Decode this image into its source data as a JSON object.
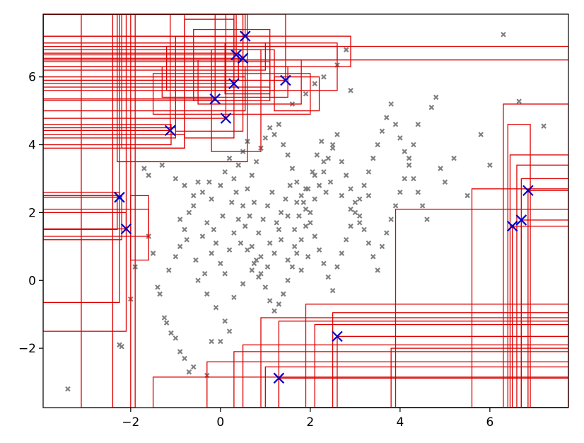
{
  "chart_data": {
    "type": "scatter",
    "title": "",
    "xlabel": "",
    "ylabel": "",
    "xlim": [
      -3.95,
      7.75
    ],
    "ylim": [
      -3.75,
      7.85
    ],
    "grid": false,
    "legend": "none",
    "x_ticks": [
      {
        "value": -2,
        "label": "−2"
      },
      {
        "value": 0,
        "label": "0"
      },
      {
        "value": 2,
        "label": "2"
      },
      {
        "value": 4,
        "label": "4"
      },
      {
        "value": 6,
        "label": "6"
      }
    ],
    "y_ticks": [
      {
        "value": -2,
        "label": "−2"
      },
      {
        "value": 0,
        "label": "0"
      },
      {
        "value": 2,
        "label": "2"
      },
      {
        "value": 4,
        "label": "4"
      },
      {
        "value": 6,
        "label": "6"
      }
    ],
    "colors": {
      "background_points": "#808080",
      "highlighted_points": "#0000cc",
      "boxes": "#dd0000",
      "axes": "#000000"
    },
    "highlighted_points": [
      {
        "x": -2.25,
        "y": 2.45
      },
      {
        "x": -2.1,
        "y": 1.52
      },
      {
        "x": -1.12,
        "y": 4.42
      },
      {
        "x": -0.12,
        "y": 5.35
      },
      {
        "x": 0.12,
        "y": 4.78
      },
      {
        "x": 0.3,
        "y": 5.8
      },
      {
        "x": 0.35,
        "y": 6.65
      },
      {
        "x": 0.5,
        "y": 6.55
      },
      {
        "x": 0.55,
        "y": 7.2
      },
      {
        "x": 1.45,
        "y": 5.9
      },
      {
        "x": 1.3,
        "y": -2.88
      },
      {
        "x": 2.6,
        "y": -1.65
      },
      {
        "x": 6.5,
        "y": 1.6
      },
      {
        "x": 6.7,
        "y": 1.78
      },
      {
        "x": 6.85,
        "y": 2.65
      }
    ],
    "boxes": [
      [
        -2.25,
        -3.95,
        2.45,
        7.85
      ],
      [
        -2.1,
        -3.95,
        1.52,
        7.85
      ],
      [
        -1.12,
        -3.95,
        4.42,
        7.85
      ],
      [
        -0.12,
        -3.95,
        5.35,
        7.85
      ],
      [
        0.12,
        -3.95,
        4.78,
        7.85
      ],
      [
        0.3,
        -3.95,
        5.8,
        7.85
      ],
      [
        0.35,
        -3.95,
        6.65,
        7.85
      ],
      [
        0.5,
        -3.95,
        6.55,
        7.85
      ],
      [
        0.55,
        -3.95,
        7.2,
        7.85
      ],
      [
        1.45,
        -3.95,
        5.9,
        7.85
      ],
      [
        1.3,
        7.75,
        -3.75,
        -2.88
      ],
      [
        2.6,
        7.75,
        -3.75,
        -1.65
      ],
      [
        6.5,
        7.75,
        -3.75,
        1.6
      ],
      [
        6.7,
        7.75,
        -3.75,
        1.78
      ],
      [
        6.85,
        7.75,
        -3.75,
        2.65
      ],
      [
        -3.1,
        -2.0,
        -3.75,
        7.85
      ],
      [
        -2.4,
        -1.9,
        -3.75,
        7.85
      ],
      [
        -2.2,
        -0.8,
        3.9,
        7.85
      ],
      [
        -2.0,
        -1.6,
        0.6,
        2.5
      ],
      [
        -2.3,
        0.6,
        3.5,
        7.85
      ],
      [
        -1.0,
        0.5,
        4.4,
        7.2
      ],
      [
        -1.5,
        2.0,
        4.9,
        6.1
      ],
      [
        -0.8,
        0.3,
        4.2,
        7.7
      ],
      [
        -0.2,
        0.9,
        3.8,
        6.8
      ],
      [
        0.1,
        1.1,
        5.5,
        7.0
      ],
      [
        -0.5,
        1.8,
        5.2,
        6.5
      ],
      [
        1.2,
        2.2,
        5.0,
        6.0
      ],
      [
        -1.2,
        2.6,
        5.6,
        6.9
      ],
      [
        -1.3,
        1.5,
        5.4,
        6.3
      ],
      [
        -0.6,
        1.1,
        5.3,
        7.4
      ],
      [
        -3.95,
        -0.8,
        3.9,
        4.3
      ],
      [
        -3.95,
        -1.0,
        4.2,
        4.5
      ],
      [
        -3.95,
        -1.1,
        4.0,
        4.6
      ],
      [
        -3.95,
        -2.2,
        1.2,
        2.5
      ],
      [
        -3.95,
        -1.6,
        1.3,
        2.1
      ],
      [
        -3.95,
        -2.3,
        1.5,
        2.5
      ],
      [
        -3.95,
        -2.25,
        -0.65,
        2.6
      ],
      [
        -3.95,
        -2.1,
        -1.5,
        2.0
      ],
      [
        -3.95,
        0.55,
        5.3,
        6.0
      ],
      [
        -3.95,
        0.55,
        5.0,
        6.3
      ],
      [
        -3.95,
        1.2,
        5.6,
        6.8
      ],
      [
        -3.95,
        1.0,
        6.2,
        7.0
      ],
      [
        -3.95,
        0.4,
        5.9,
        6.7
      ],
      [
        -3.95,
        2.6,
        6.5,
        7.0
      ],
      [
        -3.95,
        2.9,
        6.3,
        7.2
      ],
      [
        -3.95,
        7.75,
        6.5,
        6.9
      ],
      [
        -3.95,
        1.1,
        5.7,
        6.45
      ],
      [
        5.6,
        7.75,
        -3.75,
        2.7
      ],
      [
        3.9,
        7.75,
        -3.75,
        2.1
      ],
      [
        6.3,
        7.75,
        -3.75,
        5.2
      ],
      [
        6.4,
        6.9,
        -3.75,
        4.6
      ],
      [
        6.45,
        7.75,
        -3.75,
        3.7
      ],
      [
        6.6,
        7.75,
        -3.75,
        3.4
      ],
      [
        6.7,
        7.75,
        -3.75,
        3.0
      ],
      [
        -1.5,
        7.75,
        -3.75,
        -2.85
      ],
      [
        -0.3,
        7.75,
        -3.75,
        -2.4
      ],
      [
        1.3,
        7.75,
        -3.75,
        -1.2
      ],
      [
        0.9,
        7.75,
        -3.75,
        -1.1
      ],
      [
        0.5,
        7.75,
        -3.75,
        -1.9
      ],
      [
        0.3,
        7.75,
        -3.75,
        -2.1
      ],
      [
        3.8,
        7.75,
        -3.75,
        -2.0
      ],
      [
        1.9,
        7.75,
        -3.75,
        -0.7
      ],
      [
        2.5,
        7.75,
        -3.75,
        -0.95
      ],
      [
        2.1,
        7.75,
        -3.75,
        -1.3
      ],
      [
        1.0,
        7.75,
        -3.75,
        -2.55
      ]
    ],
    "background_points": [
      [
        -3.4,
        -3.2
      ],
      [
        -2.2,
        -1.95
      ],
      [
        -2.25,
        -1.9
      ],
      [
        -2.0,
        -0.55
      ],
      [
        -1.9,
        0.4
      ],
      [
        -1.6,
        1.3
      ],
      [
        -1.5,
        0.8
      ],
      [
        -1.4,
        -0.2
      ],
      [
        -1.35,
        -0.4
      ],
      [
        -1.25,
        -1.1
      ],
      [
        -1.2,
        -1.25
      ],
      [
        -1.1,
        -1.55
      ],
      [
        -1.0,
        -1.7
      ],
      [
        -0.9,
        -2.1
      ],
      [
        -0.8,
        -2.3
      ],
      [
        -0.7,
        -2.7
      ],
      [
        -0.6,
        -2.55
      ],
      [
        -0.3,
        -2.8
      ],
      [
        -0.2,
        -1.8
      ],
      [
        0.0,
        -1.8
      ],
      [
        0.2,
        -1.5
      ],
      [
        -1.15,
        0.3
      ],
      [
        -1.0,
        0.7
      ],
      [
        -0.9,
        1.0
      ],
      [
        -0.8,
        1.5
      ],
      [
        -0.7,
        2.0
      ],
      [
        -0.6,
        2.5
      ],
      [
        -0.5,
        2.9
      ],
      [
        -0.4,
        1.3
      ],
      [
        -0.3,
        1.7
      ],
      [
        -0.2,
        0.8
      ],
      [
        -0.1,
        1.1
      ],
      [
        0.0,
        0.5
      ],
      [
        0.1,
        0.2
      ],
      [
        0.2,
        0.9
      ],
      [
        0.3,
        1.4
      ],
      [
        0.4,
        1.8
      ],
      [
        0.5,
        2.2
      ],
      [
        0.6,
        2.7
      ],
      [
        0.7,
        3.1
      ],
      [
        0.8,
        3.5
      ],
      [
        0.9,
        3.9
      ],
      [
        1.0,
        4.2
      ],
      [
        1.1,
        4.5
      ],
      [
        1.2,
        4.3
      ],
      [
        1.3,
        4.6
      ],
      [
        1.4,
        4.0
      ],
      [
        1.5,
        3.7
      ],
      [
        1.6,
        3.3
      ],
      [
        1.7,
        2.9
      ],
      [
        1.8,
        2.5
      ],
      [
        1.9,
        2.1
      ],
      [
        2.0,
        1.7
      ],
      [
        2.1,
        1.3
      ],
      [
        2.2,
        0.9
      ],
      [
        2.3,
        0.5
      ],
      [
        2.4,
        0.1
      ],
      [
        2.5,
        -0.3
      ],
      [
        2.6,
        0.4
      ],
      [
        2.7,
        0.8
      ],
      [
        2.8,
        1.2
      ],
      [
        2.9,
        1.6
      ],
      [
        3.0,
        2.0
      ],
      [
        3.1,
        2.4
      ],
      [
        3.2,
        2.8
      ],
      [
        3.3,
        3.2
      ],
      [
        3.4,
        3.6
      ],
      [
        3.5,
        4.0
      ],
      [
        3.6,
        4.4
      ],
      [
        3.7,
        4.8
      ],
      [
        3.8,
        5.2
      ],
      [
        3.9,
        4.6
      ],
      [
        4.0,
        4.2
      ],
      [
        4.1,
        3.8
      ],
      [
        4.2,
        3.4
      ],
      [
        4.3,
        3.0
      ],
      [
        4.4,
        2.6
      ],
      [
        4.5,
        2.2
      ],
      [
        4.6,
        1.8
      ],
      [
        4.7,
        5.1
      ],
      [
        4.8,
        5.4
      ],
      [
        4.9,
        3.3
      ],
      [
        5.0,
        2.9
      ],
      [
        5.2,
        3.6
      ],
      [
        5.5,
        2.5
      ],
      [
        5.8,
        4.3
      ],
      [
        6.0,
        3.4
      ],
      [
        6.3,
        7.25
      ],
      [
        6.65,
        5.28
      ],
      [
        7.2,
        4.55
      ],
      [
        2.8,
        6.8
      ],
      [
        2.6,
        6.35
      ],
      [
        2.3,
        6.0
      ],
      [
        2.1,
        5.8
      ],
      [
        2.9,
        5.6
      ],
      [
        1.9,
        5.5
      ],
      [
        1.6,
        5.2
      ],
      [
        -1.7,
        3.3
      ],
      [
        -1.6,
        3.1
      ],
      [
        -1.3,
        3.4
      ],
      [
        -1.0,
        3.0
      ],
      [
        -0.8,
        2.8
      ],
      [
        -0.6,
        2.2
      ],
      [
        -0.4,
        2.6
      ],
      [
        -0.2,
        2.4
      ],
      [
        0.0,
        2.8
      ],
      [
        0.1,
        3.2
      ],
      [
        0.2,
        3.6
      ],
      [
        0.3,
        3.0
      ],
      [
        0.4,
        3.4
      ],
      [
        0.5,
        3.8
      ],
      [
        0.6,
        4.1
      ],
      [
        0.7,
        1.0
      ],
      [
        0.8,
        0.6
      ],
      [
        0.9,
        0.2
      ],
      [
        1.0,
        -0.2
      ],
      [
        1.1,
        -0.6
      ],
      [
        1.2,
        -0.9
      ],
      [
        1.3,
        -0.7
      ],
      [
        1.4,
        -0.4
      ],
      [
        1.5,
        0.0
      ],
      [
        1.6,
        0.4
      ],
      [
        1.7,
        0.8
      ],
      [
        1.8,
        1.2
      ],
      [
        1.9,
        1.6
      ],
      [
        2.0,
        2.0
      ],
      [
        2.1,
        2.4
      ],
      [
        2.2,
        2.8
      ],
      [
        2.3,
        3.2
      ],
      [
        2.4,
        3.6
      ],
      [
        2.5,
        4.0
      ],
      [
        2.6,
        4.3
      ],
      [
        2.7,
        3.5
      ],
      [
        2.8,
        3.1
      ],
      [
        2.9,
        2.7
      ],
      [
        3.0,
        2.3
      ],
      [
        3.1,
        1.9
      ],
      [
        3.2,
        1.5
      ],
      [
        3.3,
        1.1
      ],
      [
        3.4,
        0.7
      ],
      [
        3.5,
        0.3
      ],
      [
        3.6,
        1.0
      ],
      [
        3.7,
        1.4
      ],
      [
        3.8,
        1.8
      ],
      [
        3.9,
        2.2
      ],
      [
        4.0,
        2.6
      ],
      [
        4.1,
        3.0
      ],
      [
        4.2,
        3.6
      ],
      [
        4.3,
        4.0
      ],
      [
        4.4,
        4.6
      ],
      [
        -0.5,
        0.0
      ],
      [
        -0.3,
        -0.4
      ],
      [
        -0.1,
        -0.8
      ],
      [
        0.1,
        -1.2
      ],
      [
        0.3,
        -0.5
      ],
      [
        0.5,
        -0.1
      ],
      [
        0.7,
        0.3
      ],
      [
        0.9,
        0.7
      ],
      [
        1.1,
        1.1
      ],
      [
        1.3,
        1.5
      ],
      [
        1.5,
        1.9
      ],
      [
        1.7,
        2.3
      ],
      [
        1.9,
        2.7
      ],
      [
        2.1,
        3.1
      ],
      [
        2.3,
        3.5
      ],
      [
        2.5,
        3.9
      ],
      [
        2.7,
        2.5
      ],
      [
        2.9,
        2.1
      ],
      [
        3.1,
        1.7
      ],
      [
        3.3,
        2.5
      ],
      [
        0.55,
        1.6
      ],
      [
        0.65,
        1.9
      ],
      [
        0.75,
        2.3
      ],
      [
        0.85,
        1.4
      ],
      [
        0.95,
        1.8
      ],
      [
        1.05,
        2.2
      ],
      [
        1.15,
        2.6
      ],
      [
        1.25,
        1.7
      ],
      [
        1.35,
        2.0
      ],
      [
        1.45,
        2.4
      ],
      [
        1.55,
        2.8
      ],
      [
        1.65,
        1.5
      ],
      [
        1.75,
        1.9
      ],
      [
        1.85,
        2.3
      ],
      [
        1.95,
        2.7
      ],
      [
        2.05,
        3.2
      ],
      [
        2.15,
        3.7
      ],
      [
        2.25,
        4.1
      ],
      [
        2.35,
        2.6
      ],
      [
        2.45,
        2.9
      ],
      [
        0.6,
        0.9
      ],
      [
        0.75,
        0.5
      ],
      [
        0.85,
        0.1
      ],
      [
        1.05,
        0.4
      ],
      [
        1.2,
        0.8
      ],
      [
        1.35,
        1.2
      ],
      [
        1.5,
        0.6
      ],
      [
        1.65,
        1.0
      ],
      [
        1.8,
        0.3
      ],
      [
        1.95,
        0.7
      ],
      [
        -0.9,
        1.8
      ],
      [
        -0.75,
        1.2
      ],
      [
        -0.55,
        0.6
      ],
      [
        -0.35,
        0.2
      ],
      [
        -0.15,
        1.5
      ],
      [
        0.05,
        1.9
      ],
      [
        0.25,
        2.3
      ],
      [
        0.45,
        1.1
      ],
      [
        -0.25,
        2.9
      ],
      [
        0.35,
        2.6
      ]
    ]
  }
}
